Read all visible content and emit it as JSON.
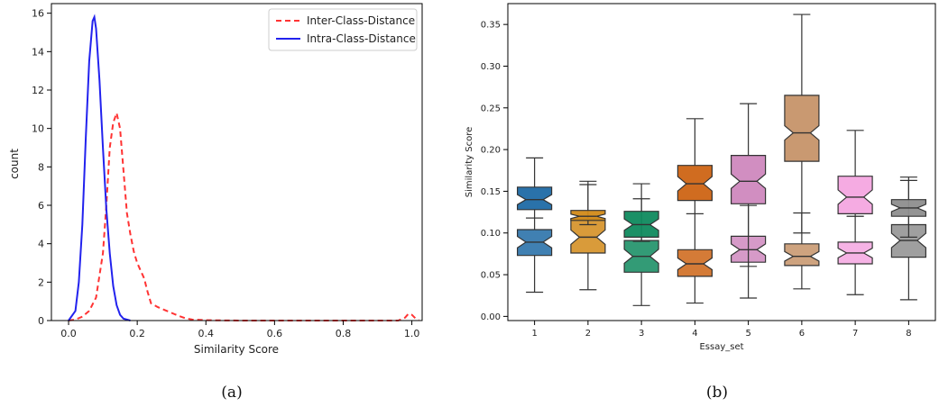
{
  "chart_data": [
    {
      "type": "line",
      "subplot_label": "(a)",
      "xlabel": "Similarity Score",
      "ylabel": "count",
      "xlim": [
        -0.05,
        1.03
      ],
      "ylim": [
        0,
        16.5
      ],
      "x_ticks": [
        0.0,
        0.2,
        0.4,
        0.6,
        0.8,
        1.0
      ],
      "x_tick_labels": [
        "0.0",
        "0.2",
        "0.4",
        "0.6",
        "0.8",
        "1.0"
      ],
      "y_ticks": [
        0,
        2,
        4,
        6,
        8,
        10,
        12,
        14,
        16
      ],
      "y_tick_labels": [
        "0",
        "2",
        "4",
        "6",
        "8",
        "10",
        "12",
        "14",
        "16"
      ],
      "grid": false,
      "legend_position": "top-right",
      "series": [
        {
          "name": "Inter-Class-Distance",
          "color": "#ff3333",
          "style": "dashed",
          "x": [
            0.0,
            0.02,
            0.04,
            0.06,
            0.08,
            0.1,
            0.11,
            0.12,
            0.13,
            0.14,
            0.15,
            0.16,
            0.17,
            0.18,
            0.19,
            0.2,
            0.21,
            0.22,
            0.23,
            0.24,
            0.26,
            0.28,
            0.3,
            0.32,
            0.34,
            0.36,
            0.4,
            0.5,
            0.6,
            0.7,
            0.8,
            0.9,
            0.96,
            0.98,
            0.99,
            1.0,
            1.01,
            1.02
          ],
          "y": [
            0.0,
            0.05,
            0.2,
            0.5,
            1.2,
            3.5,
            6.0,
            9.0,
            10.3,
            10.8,
            10.0,
            7.8,
            5.6,
            4.5,
            3.6,
            3.0,
            2.6,
            2.2,
            1.5,
            0.9,
            0.7,
            0.55,
            0.4,
            0.25,
            0.12,
            0.05,
            0.02,
            0.0,
            0.0,
            0.0,
            0.0,
            0.0,
            0.0,
            0.15,
            0.35,
            0.3,
            0.12,
            0.02
          ]
        },
        {
          "name": "Intra-Class-Distance",
          "color": "#2222ee",
          "style": "solid",
          "x": [
            0.0,
            0.02,
            0.03,
            0.04,
            0.05,
            0.06,
            0.07,
            0.075,
            0.08,
            0.09,
            0.1,
            0.11,
            0.12,
            0.13,
            0.14,
            0.15,
            0.16,
            0.18
          ],
          "y": [
            0.0,
            0.5,
            2.0,
            5.0,
            9.5,
            13.5,
            15.6,
            15.8,
            15.2,
            12.5,
            9.0,
            5.8,
            3.5,
            1.8,
            0.8,
            0.3,
            0.1,
            0.0
          ]
        }
      ]
    },
    {
      "type": "box",
      "subplot_label": "(b)",
      "xlabel": "Essay_set",
      "ylabel": "Similarity Score",
      "ylim": [
        -0.005,
        0.375
      ],
      "y_ticks": [
        0.0,
        0.05,
        0.1,
        0.15,
        0.2,
        0.25,
        0.3,
        0.35
      ],
      "y_tick_labels": [
        "0.00",
        "0.05",
        "0.10",
        "0.15",
        "0.20",
        "0.25",
        "0.30",
        "0.35"
      ],
      "categories": [
        "1",
        "2",
        "3",
        "4",
        "5",
        "6",
        "7",
        "8"
      ],
      "notched": true,
      "grid": false,
      "groups": [
        {
          "category": "1",
          "color": "#1f6aa5",
          "boxes": [
            {
              "whislo": 0.029,
              "q1": 0.073,
              "med": 0.089,
              "q3": 0.104,
              "whishi": 0.118
            },
            {
              "whislo": 0.118,
              "q1": 0.128,
              "med": 0.14,
              "q3": 0.155,
              "whishi": 0.19
            }
          ]
        },
        {
          "category": "2",
          "color": "#d28a18",
          "boxes": [
            {
              "whislo": 0.032,
              "q1": 0.076,
              "med": 0.095,
              "q3": 0.117,
              "whishi": 0.158
            },
            {
              "whislo": 0.11,
              "q1": 0.115,
              "med": 0.12,
              "q3": 0.127,
              "whishi": 0.162
            }
          ]
        },
        {
          "category": "3",
          "color": "#0f8a5e",
          "boxes": [
            {
              "whislo": 0.013,
              "q1": 0.053,
              "med": 0.072,
              "q3": 0.091,
              "whishi": 0.141
            },
            {
              "whislo": 0.09,
              "q1": 0.095,
              "med": 0.11,
              "q3": 0.126,
              "whishi": 0.159
            }
          ]
        },
        {
          "category": "4",
          "color": "#cd6414",
          "boxes": [
            {
              "whislo": 0.016,
              "q1": 0.048,
              "med": 0.063,
              "q3": 0.08,
              "whishi": 0.123
            },
            {
              "whislo": 0.123,
              "q1": 0.139,
              "med": 0.159,
              "q3": 0.181,
              "whishi": 0.237
            }
          ]
        },
        {
          "category": "5",
          "color": "#cf88be",
          "boxes": [
            {
              "whislo": 0.022,
              "q1": 0.065,
              "med": 0.08,
              "q3": 0.096,
              "whishi": 0.133
            },
            {
              "whislo": 0.06,
              "q1": 0.135,
              "med": 0.162,
              "q3": 0.193,
              "whishi": 0.255
            }
          ]
        },
        {
          "category": "6",
          "color": "#c69369",
          "boxes": [
            {
              "whislo": 0.033,
              "q1": 0.061,
              "med": 0.072,
              "q3": 0.087,
              "whishi": 0.124
            },
            {
              "whislo": 0.1,
              "q1": 0.186,
              "med": 0.22,
              "q3": 0.265,
              "whishi": 0.362
            }
          ]
        },
        {
          "category": "7",
          "color": "#f4a6e0",
          "boxes": [
            {
              "whislo": 0.026,
              "q1": 0.063,
              "med": 0.076,
              "q3": 0.089,
              "whishi": 0.12
            },
            {
              "whislo": 0.12,
              "q1": 0.123,
              "med": 0.143,
              "q3": 0.168,
              "whishi": 0.223
            }
          ]
        },
        {
          "category": "8",
          "color": "#8e8e8e",
          "boxes": [
            {
              "whislo": 0.02,
              "q1": 0.071,
              "med": 0.091,
              "q3": 0.11,
              "whishi": 0.167
            },
            {
              "whislo": 0.095,
              "q1": 0.12,
              "med": 0.13,
              "q3": 0.14,
              "whishi": 0.163
            }
          ]
        }
      ]
    }
  ]
}
